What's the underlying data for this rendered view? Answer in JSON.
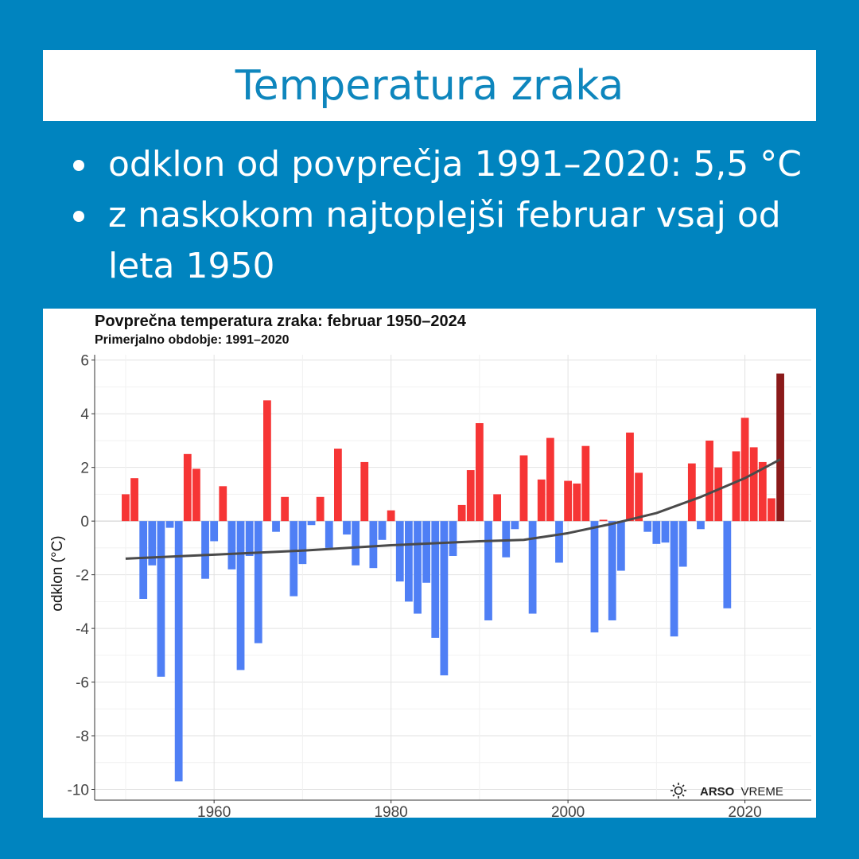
{
  "header": {
    "title": "Temperatura zraka"
  },
  "bullets": [
    "odklon od povprečja 1991–2020: 5,5 °C",
    "z naskokom najtoplejši februar vsaj od leta 1950"
  ],
  "colors": {
    "background": "#0084bf",
    "title_text": "#0e86bd",
    "positive_bar": "#f63535",
    "negative_bar": "#4f7ff5",
    "highlight_bar": "#8b1a1a",
    "trend_line": "#4a4a4a"
  },
  "logo": {
    "icon": "sun-icon",
    "brand": "ARSO",
    "product": "VREME"
  },
  "chart_data": {
    "type": "bar",
    "title": "Povprečna temperatura zraka: februar 1950–2024",
    "subtitle": "Primerjalno obdobje: 1991–2020",
    "xlabel": "",
    "ylabel": "odklon (°C)",
    "ylim": [
      -10.4,
      6.2
    ],
    "xlim": [
      1946.5,
      2027.5
    ],
    "yticks": [
      6,
      4,
      2,
      0,
      -2,
      -4,
      -6,
      -8,
      -10
    ],
    "xticks": [
      1960,
      1980,
      2000,
      2020
    ],
    "grid": true,
    "x": [
      1950,
      1951,
      1952,
      1953,
      1954,
      1955,
      1956,
      1957,
      1958,
      1959,
      1960,
      1961,
      1962,
      1963,
      1964,
      1965,
      1966,
      1967,
      1968,
      1969,
      1970,
      1971,
      1972,
      1973,
      1974,
      1975,
      1976,
      1977,
      1978,
      1979,
      1980,
      1981,
      1982,
      1983,
      1984,
      1985,
      1986,
      1987,
      1988,
      1989,
      1990,
      1991,
      1992,
      1993,
      1994,
      1995,
      1996,
      1997,
      1998,
      1999,
      2000,
      2001,
      2002,
      2003,
      2004,
      2005,
      2006,
      2007,
      2008,
      2009,
      2010,
      2011,
      2012,
      2013,
      2014,
      2015,
      2016,
      2017,
      2018,
      2019,
      2020,
      2021,
      2022,
      2023,
      2024
    ],
    "values": [
      1.0,
      1.6,
      -2.9,
      -1.65,
      -5.8,
      -0.25,
      -9.7,
      2.5,
      1.95,
      -2.15,
      -0.75,
      1.3,
      -1.8,
      -5.55,
      -1.3,
      -4.55,
      4.5,
      -0.4,
      0.9,
      -2.8,
      -1.6,
      -0.15,
      0.9,
      -1.0,
      2.7,
      -0.5,
      -1.65,
      2.2,
      -1.75,
      -0.7,
      0.4,
      -2.25,
      -3.0,
      -3.45,
      -2.3,
      -4.35,
      -5.75,
      -1.3,
      0.6,
      1.9,
      3.65,
      -3.7,
      1.0,
      -1.35,
      -0.3,
      2.45,
      -3.45,
      1.55,
      3.1,
      -1.55,
      1.5,
      1.4,
      2.8,
      -4.15,
      0.05,
      -3.7,
      -1.85,
      3.3,
      1.8,
      -0.4,
      -0.85,
      -0.8,
      -4.3,
      -1.7,
      2.15,
      -0.3,
      3.0,
      2.0,
      -3.25,
      2.6,
      3.85,
      2.75,
      2.2,
      0.85,
      5.5
    ],
    "highlight": {
      "x": 2024,
      "value": 5.5
    },
    "trend": {
      "x": [
        1950,
        1960,
        1970,
        1980,
        1990,
        1995,
        2000,
        2005,
        2010,
        2015,
        2020,
        2024
      ],
      "y": [
        -1.4,
        -1.25,
        -1.1,
        -0.9,
        -0.75,
        -0.7,
        -0.45,
        -0.1,
        0.3,
        0.9,
        1.6,
        2.3
      ]
    }
  }
}
